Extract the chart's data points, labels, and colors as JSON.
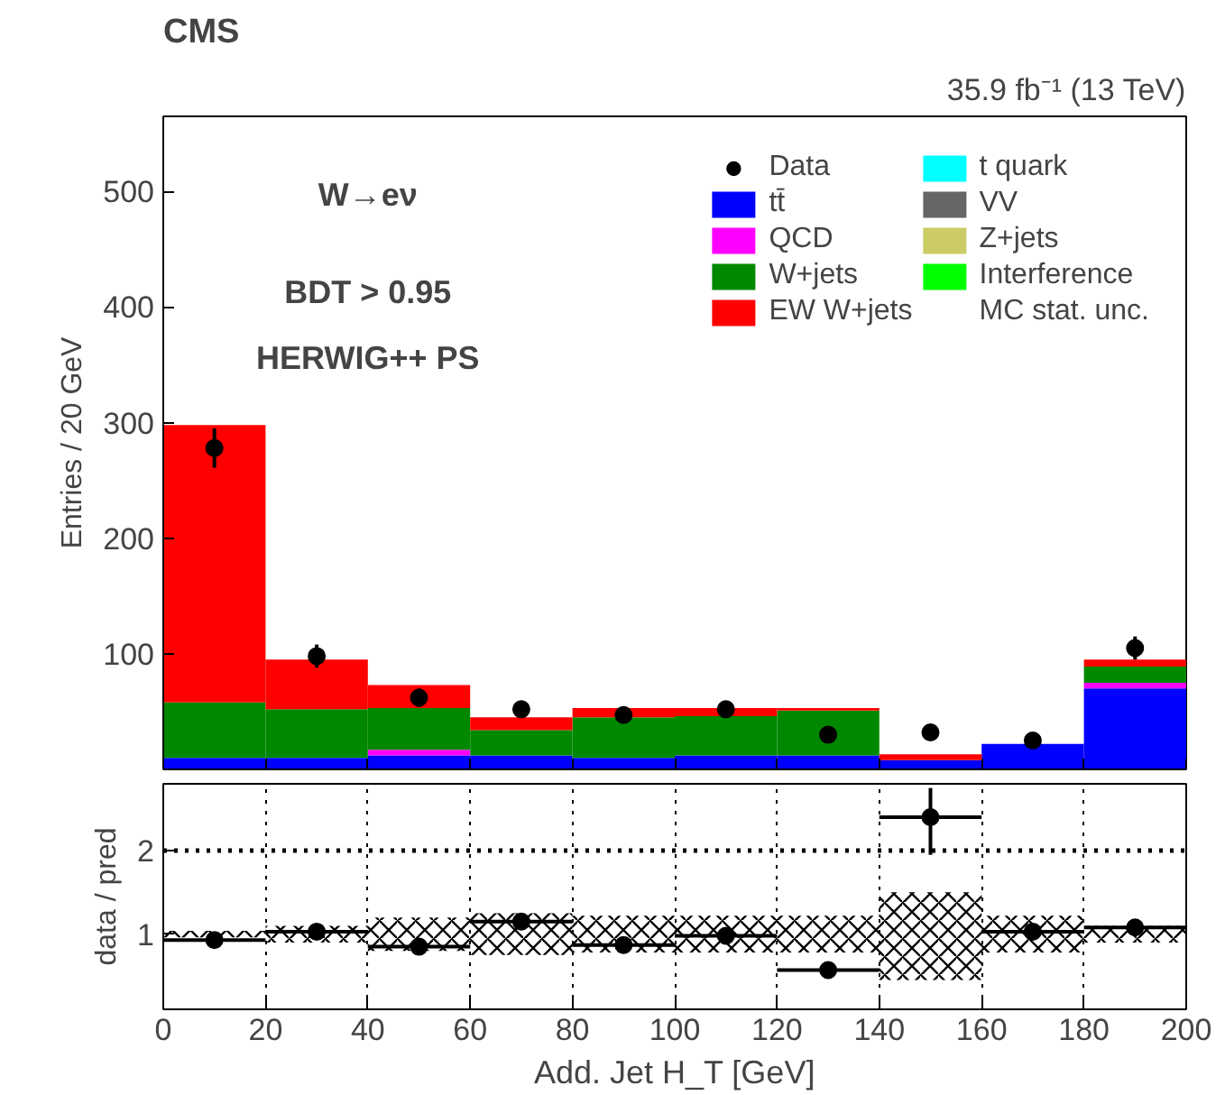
{
  "chart_data": [
    {
      "type": "bar",
      "title": "CMS",
      "subtitle": "35.9 fb⁻¹ (13 TeV)",
      "ylabel": "Entries / 20 GeV",
      "annotations": [
        "W→eν",
        "BDT > 0.95",
        "HERWIG++ PS"
      ],
      "stacked": true,
      "x": [
        10,
        30,
        50,
        70,
        90,
        110,
        130,
        150,
        170,
        190
      ],
      "xlim": [
        0,
        200
      ],
      "xticks": [
        0,
        20,
        40,
        60,
        80,
        100,
        120,
        140,
        160,
        180,
        200
      ],
      "ylim": [
        0,
        565
      ],
      "yticks": [
        100,
        200,
        300,
        400,
        500
      ],
      "tick_labels": "y",
      "legend": "top right",
      "series": [
        {
          "name": "Data",
          "type": "scatter",
          "color": "#000000",
          "values": [
            278,
            98,
            62,
            52,
            47,
            52,
            30,
            32,
            25,
            105
          ],
          "errors": [
            17,
            10,
            8,
            7,
            7,
            7,
            5.5,
            5.5,
            5,
            10
          ]
        },
        {
          "name": "tt̄",
          "color": "#0000ff",
          "values": [
            10,
            10,
            12,
            12,
            10,
            12,
            12,
            8,
            22,
            70
          ]
        },
        {
          "name": "QCD",
          "color": "#ff00ff",
          "values": [
            0,
            0,
            5,
            0,
            0,
            0,
            0,
            0,
            0,
            5
          ]
        },
        {
          "name": "W+jets",
          "color": "#008800",
          "values": [
            48,
            42,
            36,
            22,
            35,
            34,
            39,
            0,
            0,
            14
          ]
        },
        {
          "name": "EW W+jets",
          "color": "#ff0000",
          "values": [
            240,
            43,
            20,
            11,
            8,
            7,
            2,
            5,
            0,
            6
          ]
        },
        {
          "name": "t quark",
          "color": "#00ffff",
          "values": [
            0,
            0,
            0,
            0,
            0,
            0,
            0,
            0,
            0,
            0
          ]
        },
        {
          "name": "VV",
          "color": "#666666",
          "values": [
            0,
            0,
            0,
            0,
            0,
            0,
            0,
            0,
            0,
            0
          ]
        },
        {
          "name": "Z+jets",
          "color": "#cccc66",
          "values": [
            0,
            0,
            0,
            0,
            0,
            0,
            0,
            0,
            0,
            0
          ]
        },
        {
          "name": "Interference",
          "color": "#00ff00",
          "values": [
            0,
            0,
            0,
            0,
            0,
            0,
            0,
            0,
            0,
            0
          ]
        }
      ]
    },
    {
      "type": "scatter",
      "xlabel": "Add. Jet H_T [GeV]",
      "ylabel": "data / pred",
      "x": [
        10,
        30,
        50,
        70,
        90,
        110,
        130,
        150,
        170,
        190
      ],
      "xlim": [
        0,
        200
      ],
      "xticks": [
        0,
        20,
        40,
        60,
        80,
        100,
        120,
        140,
        160,
        180,
        200
      ],
      "ylim": [
        0.1,
        2.8
      ],
      "yticks": [
        1,
        2
      ],
      "grid": "x",
      "ref_lines": [
        {
          "axis": "y",
          "value": 2,
          "color": "#000000",
          "line_style": "dotted"
        }
      ],
      "series": [
        {
          "name": "MC stat. unc.",
          "type": "bar",
          "color": "#000000",
          "base": [
            0.96,
            0.9,
            0.8,
            0.75,
            0.78,
            0.78,
            0.78,
            0.45,
            0.78,
            0.9
          ],
          "values": [
            0.08,
            0.2,
            0.4,
            0.5,
            0.44,
            0.44,
            0.44,
            1.05,
            0.44,
            0.2
          ]
        },
        {
          "type": "scatter",
          "color": "#000000",
          "values": [
            0.93,
            1.03,
            0.85,
            1.15,
            0.87,
            0.98,
            0.57,
            2.4,
            1.03,
            1.08
          ],
          "errors": [
            null,
            null,
            null,
            null,
            null,
            null,
            null,
            [
              1.95,
              2.75
            ],
            null,
            null
          ],
          "xerrors": [
            10,
            10,
            10,
            10,
            10,
            10,
            10,
            10,
            10,
            10
          ]
        }
      ]
    }
  ]
}
